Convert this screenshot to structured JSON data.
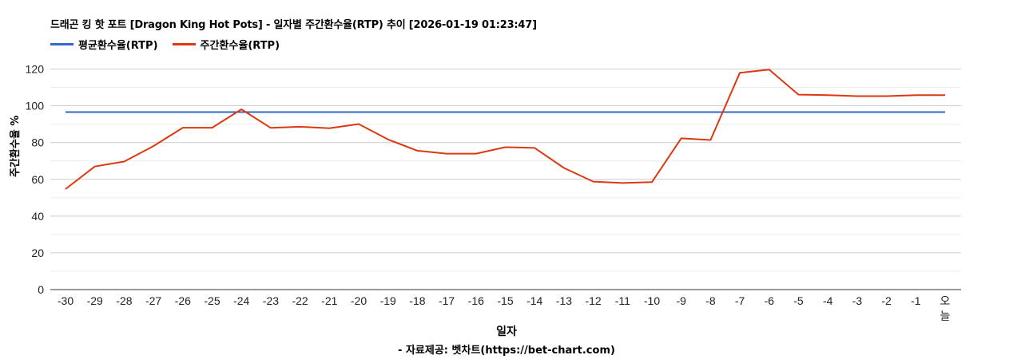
{
  "title": "드래곤 킹 핫 포트 [Dragon King Hot Pots] - 일자별 주간환수율(RTP) 추이 [2026-01-19 01:23:47]",
  "legend": [
    {
      "label": "평균환수율(RTP)",
      "color": "#3366CC"
    },
    {
      "label": "주간환수율(RTP)",
      "color": "#DC3912"
    }
  ],
  "axes": {
    "ylabel": "주간환수율 %",
    "xlabel": "일자",
    "credit": "- 자료제공: 벳차트(https://bet-chart.com)"
  },
  "chart_data": {
    "type": "line",
    "title": "드래곤 킹 핫 포트 [Dragon King Hot Pots] - 일자별 주간환수율(RTP) 추이 [2026-01-19 01:23:47]",
    "xlabel": "일자",
    "ylabel": "주간환수율 %",
    "ylim": [
      0,
      120
    ],
    "yticks": [
      0,
      20,
      40,
      60,
      80,
      100,
      120
    ],
    "grid": true,
    "legend_position": "top-left",
    "categories": [
      "-30",
      "-29",
      "-28",
      "-27",
      "-26",
      "-25",
      "-24",
      "-23",
      "-22",
      "-21",
      "-20",
      "-19",
      "-18",
      "-17",
      "-16",
      "-15",
      "-14",
      "-13",
      "-12",
      "-11",
      "-10",
      "-9",
      "-8",
      "-7",
      "-6",
      "-5",
      "-4",
      "-3",
      "-2",
      "-1",
      "오늘"
    ],
    "series": [
      {
        "name": "평균환수율(RTP)",
        "color": "#3366CC",
        "values": [
          96.6,
          96.6,
          96.6,
          96.6,
          96.6,
          96.6,
          96.6,
          96.6,
          96.6,
          96.6,
          96.6,
          96.6,
          96.6,
          96.6,
          96.6,
          96.6,
          96.6,
          96.6,
          96.6,
          96.6,
          96.6,
          96.6,
          96.6,
          96.6,
          96.6,
          96.6,
          96.6,
          96.6,
          96.6,
          96.6,
          96.6
        ]
      },
      {
        "name": "주간환수율(RTP)",
        "color": "#DC3912",
        "values": [
          54.7,
          67.0,
          69.7,
          78.1,
          88.1,
          88.1,
          98.1,
          88.0,
          88.6,
          87.8,
          90.1,
          81.7,
          75.6,
          74.0,
          74.0,
          77.5,
          77.1,
          66.2,
          58.8,
          58.0,
          58.5,
          82.3,
          81.4,
          118.0,
          119.7,
          106.1,
          105.8,
          105.3,
          105.3,
          105.8,
          105.8
        ]
      }
    ]
  }
}
